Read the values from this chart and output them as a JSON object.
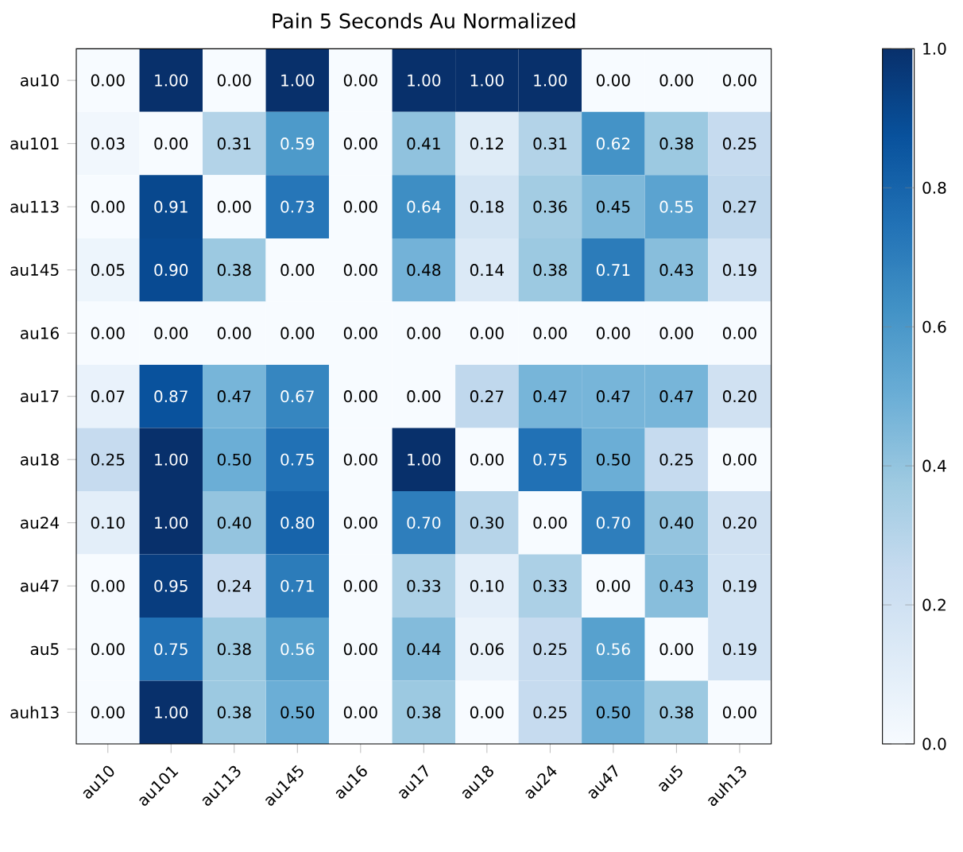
{
  "chart_data": {
    "type": "heatmap",
    "title": "Pain 5 Seconds Au Normalized",
    "categories": [
      "au10",
      "au101",
      "au113",
      "au145",
      "au16",
      "au17",
      "au18",
      "au24",
      "au47",
      "au5",
      "auh13"
    ],
    "y_categories": [
      "au10",
      "au101",
      "au113",
      "au145",
      "au16",
      "au17",
      "au18",
      "au24",
      "au47",
      "au5",
      "auh13"
    ],
    "cells": [
      [
        0.0,
        1.0,
        0.0,
        1.0,
        0.0,
        1.0,
        1.0,
        1.0,
        0.0,
        0.0,
        0.0
      ],
      [
        0.03,
        0.0,
        0.31,
        0.59,
        0.0,
        0.41,
        0.12,
        0.31,
        0.62,
        0.38,
        0.25
      ],
      [
        0.0,
        0.91,
        0.0,
        0.73,
        0.0,
        0.64,
        0.18,
        0.36,
        0.45,
        0.55,
        0.27
      ],
      [
        0.05,
        0.9,
        0.38,
        0.0,
        0.0,
        0.48,
        0.14,
        0.38,
        0.71,
        0.43,
        0.19
      ],
      [
        0.0,
        0.0,
        0.0,
        0.0,
        0.0,
        0.0,
        0.0,
        0.0,
        0.0,
        0.0,
        0.0
      ],
      [
        0.07,
        0.87,
        0.47,
        0.67,
        0.0,
        0.0,
        0.27,
        0.47,
        0.47,
        0.47,
        0.2
      ],
      [
        0.25,
        1.0,
        0.5,
        0.75,
        0.0,
        1.0,
        0.0,
        0.75,
        0.5,
        0.25,
        0.0
      ],
      [
        0.1,
        1.0,
        0.4,
        0.8,
        0.0,
        0.7,
        0.3,
        0.0,
        0.7,
        0.4,
        0.2
      ],
      [
        0.0,
        0.95,
        0.24,
        0.71,
        0.0,
        0.33,
        0.1,
        0.33,
        0.0,
        0.43,
        0.19
      ],
      [
        0.0,
        0.75,
        0.38,
        0.56,
        0.0,
        0.44,
        0.06,
        0.25,
        0.56,
        0.0,
        0.19
      ],
      [
        0.0,
        1.0,
        0.38,
        0.5,
        0.0,
        0.38,
        0.0,
        0.25,
        0.5,
        0.38,
        0.0
      ]
    ],
    "cell_labels": [
      [
        "0.00",
        "1.00",
        "0.00",
        "1.00",
        "0.00",
        "1.00",
        "1.00",
        "1.00",
        "0.00",
        "0.00",
        "0.00"
      ],
      [
        "0.03",
        "0.00",
        "0.31",
        "0.59",
        "0.00",
        "0.41",
        "0.12",
        "0.31",
        "0.62",
        "0.38",
        "0.25"
      ],
      [
        "0.00",
        "0.91",
        "0.00",
        "0.73",
        "0.00",
        "0.64",
        "0.18",
        "0.36",
        "0.45",
        "0.55",
        "0.27"
      ],
      [
        "0.05",
        "0.90",
        "0.38",
        "0.00",
        "0.00",
        "0.48",
        "0.14",
        "0.38",
        "0.71",
        "0.43",
        "0.19"
      ],
      [
        "0.00",
        "0.00",
        "0.00",
        "0.00",
        "0.00",
        "0.00",
        "0.00",
        "0.00",
        "0.00",
        "0.00",
        "0.00"
      ],
      [
        "0.07",
        "0.87",
        "0.47",
        "0.67",
        "0.00",
        "0.00",
        "0.27",
        "0.47",
        "0.47",
        "0.47",
        "0.20"
      ],
      [
        "0.25",
        "1.00",
        "0.50",
        "0.75",
        "0.00",
        "1.00",
        "0.00",
        "0.75",
        "0.50",
        "0.25",
        "0.00"
      ],
      [
        "0.10",
        "1.00",
        "0.40",
        "0.80",
        "0.00",
        "0.70",
        "0.30",
        "0.00",
        "0.70",
        "0.40",
        "0.20"
      ],
      [
        "0.00",
        "0.95",
        "0.24",
        "0.71",
        "0.00",
        "0.33",
        "0.10",
        "0.33",
        "0.00",
        "0.43",
        "0.19"
      ],
      [
        "0.00",
        "0.75",
        "0.38",
        "0.56",
        "0.00",
        "0.44",
        "0.06",
        "0.25",
        "0.56",
        "0.00",
        "0.19"
      ],
      [
        "0.00",
        "1.00",
        "0.38",
        "0.50",
        "0.00",
        "0.38",
        "0.00",
        "0.25",
        "0.50",
        "0.38",
        "0.00"
      ]
    ],
    "clim": [
      0,
      1
    ],
    "cticks": [
      {
        "value": 0,
        "label": "0.0"
      },
      {
        "value": 0.2,
        "label": "0.2"
      },
      {
        "value": 0.4,
        "label": "0.4"
      },
      {
        "value": 0.6,
        "label": "0.6"
      },
      {
        "value": 0.8,
        "label": "0.8"
      },
      {
        "value": 1.0,
        "label": "1.0"
      }
    ]
  }
}
